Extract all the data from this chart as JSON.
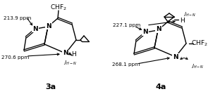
{
  "fig_width": 3.12,
  "fig_height": 1.34,
  "dpi": 100,
  "bg_color": "#ffffff",
  "mol3a_label": "3a",
  "mol4a_label": "4a",
  "ppm3a_top": "213.9 ppm",
  "ppm3a_bot": "270.6 ppm",
  "ppm4a_top": "227.1 ppm",
  "ppm4a_bot": "268.1 ppm",
  "chf2": "CHF₂",
  "jhn": "$J_{H-N}$",
  "h_label": "H",
  "n_label": "N"
}
